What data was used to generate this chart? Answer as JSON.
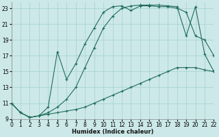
{
  "xlabel": "Humidex (Indice chaleur)",
  "bg_color": "#cce8e8",
  "grid_color": "#aad4d4",
  "line_color": "#1f6b5c",
  "xlim": [
    0,
    22
  ],
  "ylim": [
    9,
    23.8
  ],
  "xticks": [
    0,
    1,
    2,
    3,
    4,
    5,
    6,
    7,
    8,
    9,
    10,
    11,
    12,
    13,
    14,
    15,
    16,
    17,
    18,
    19,
    20,
    21,
    22
  ],
  "yticks": [
    9,
    11,
    13,
    15,
    17,
    19,
    21,
    23
  ],
  "s1x": [
    0,
    1,
    2,
    3,
    4,
    5,
    6,
    7,
    8,
    9,
    10,
    11,
    12,
    13,
    14,
    15,
    16,
    17,
    18,
    19,
    20,
    21,
    22
  ],
  "s1y": [
    11.0,
    9.8,
    9.2,
    9.4,
    9.6,
    9.8,
    10.0,
    10.2,
    10.5,
    11.0,
    11.5,
    12.0,
    12.5,
    13.0,
    13.5,
    14.0,
    14.5,
    15.0,
    15.5,
    15.5,
    15.5,
    15.2,
    15.0
  ],
  "s2x": [
    0,
    1,
    2,
    3,
    4,
    5,
    6,
    7,
    8,
    9,
    10,
    11,
    12,
    13,
    14,
    15,
    16,
    17,
    18,
    19,
    20,
    21,
    22
  ],
  "s2y": [
    11.0,
    9.8,
    9.2,
    9.4,
    9.8,
    10.5,
    11.5,
    13.0,
    15.5,
    18.0,
    20.5,
    22.0,
    23.0,
    23.3,
    23.4,
    23.4,
    23.4,
    23.3,
    23.2,
    19.5,
    23.2,
    17.2,
    15.0
  ],
  "s3x": [
    0,
    1,
    2,
    3,
    4,
    5,
    6,
    7,
    8,
    9,
    10,
    11,
    12,
    13,
    14,
    15,
    16,
    17,
    18,
    19,
    20,
    21,
    22
  ],
  "s3y": [
    11.0,
    9.8,
    9.2,
    9.4,
    10.5,
    17.5,
    14.0,
    16.0,
    18.5,
    20.5,
    22.5,
    23.2,
    23.3,
    22.7,
    23.3,
    23.3,
    23.2,
    23.2,
    23.0,
    22.5,
    19.5,
    19.0,
    17.0
  ]
}
